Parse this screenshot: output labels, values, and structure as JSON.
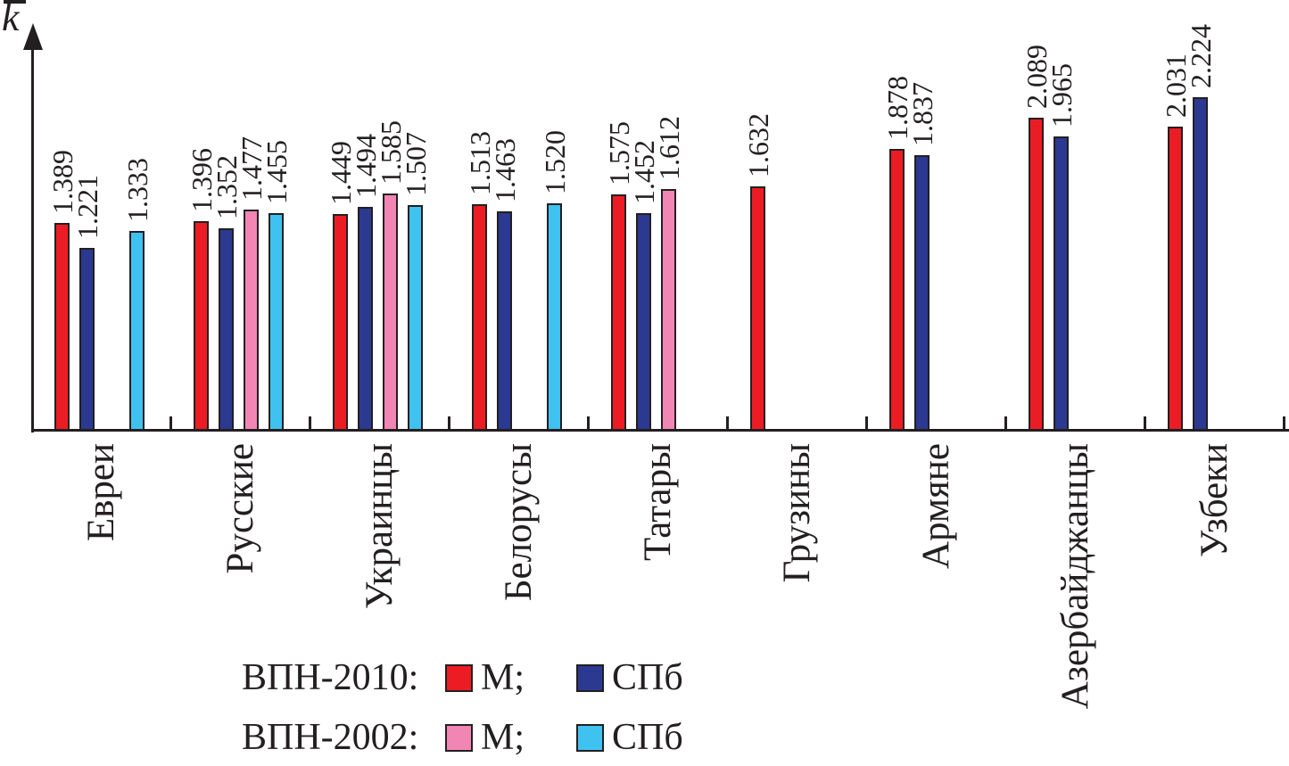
{
  "axis": {
    "y_label": "k",
    "y_label_overline": true
  },
  "chart_data": {
    "type": "bar",
    "title": "",
    "xlabel": "",
    "ylabel": "k̄",
    "ylim": [
      0,
      2.6
    ],
    "grid": false,
    "legend_position": "bottom-left",
    "value_label_decimals": 3,
    "categories": [
      "Евреи",
      "Русские",
      "Украинцы",
      "Белорусы",
      "Татары",
      "Грузины",
      "Армяне",
      "Азербайджанцы",
      "Узбеки"
    ],
    "series": [
      {
        "name": "ВПН-2010 М",
        "color": "#EC1C24",
        "values": [
          1.389,
          1.396,
          1.449,
          1.513,
          1.575,
          1.632,
          1.878,
          2.089,
          2.031
        ]
      },
      {
        "name": "ВПН-2010 СПб",
        "color": "#2B3990",
        "values": [
          1.221,
          1.352,
          1.494,
          1.463,
          1.452,
          null,
          1.837,
          1.965,
          2.224
        ]
      },
      {
        "name": "ВПН-2002 М",
        "color": "#F186B4",
        "values": [
          null,
          1.477,
          1.585,
          null,
          1.612,
          null,
          null,
          null,
          null
        ]
      },
      {
        "name": "ВПН-2002 СПб",
        "color": "#3FC2F0",
        "values": [
          1.333,
          1.455,
          1.507,
          1.52,
          null,
          null,
          null,
          null,
          null
        ]
      }
    ]
  },
  "legend": {
    "rows": [
      {
        "label": "ВПН-2010:",
        "items": [
          {
            "text": "М;",
            "swatch": 0
          },
          {
            "text": "СПб",
            "swatch": 1
          }
        ]
      },
      {
        "label": "ВПН-2002:",
        "items": [
          {
            "text": "М;",
            "swatch": 2
          },
          {
            "text": "СПб",
            "swatch": 3
          }
        ]
      }
    ]
  },
  "colors": {
    "axis": "#231f20",
    "background": "#ffffff"
  }
}
